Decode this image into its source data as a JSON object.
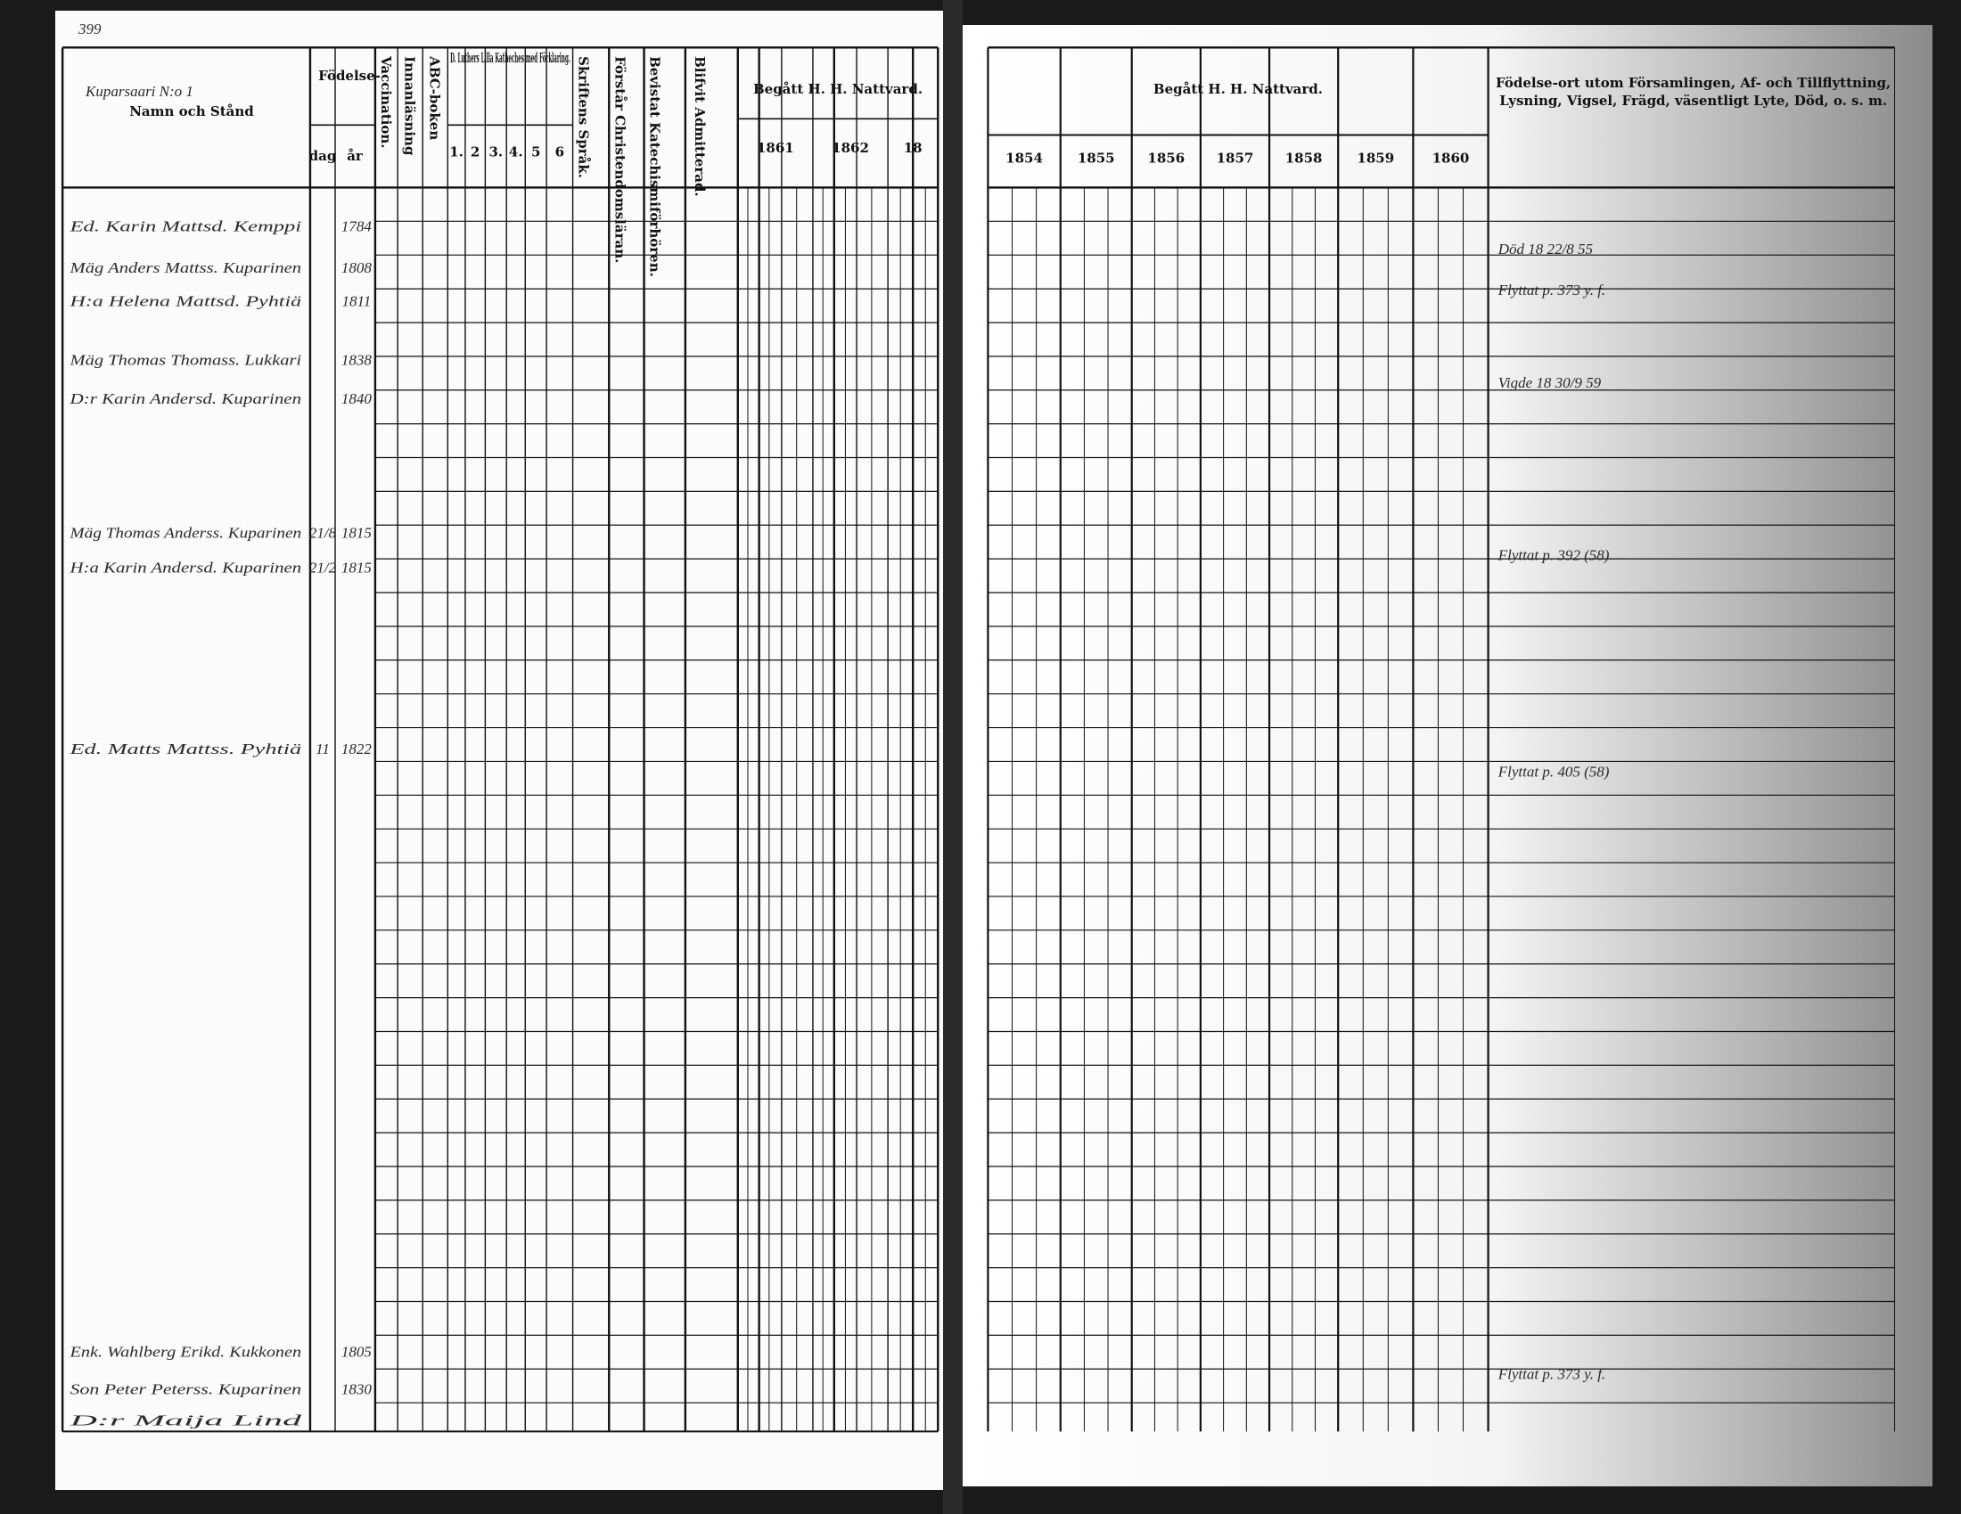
{
  "page_number": "399",
  "left_page": {
    "house": "Kuparsaari N:o 1",
    "headers": {
      "name": "Namn och Stånd",
      "birth": "Födelse-",
      "birth_day": "dag",
      "birth_year": "år",
      "vaccination": "Vaccination.",
      "reading": "Innanläsning",
      "abc": "ABC-boken",
      "catechism": "D. Luthers Lilla Katheches med Förklaring.",
      "catechism_parts": [
        "1.",
        "2",
        "3.",
        "4.",
        "5",
        "6"
      ],
      "scripture": "Skriftens Språk.",
      "doctrine": "Förstår Christendomsläran.",
      "examinations": "Bevistat Katechismiförhören.",
      "admitted": "Blifvit Admitterad.",
      "communion": "Begått H. H. Nattvard.",
      "communion_years": [
        "1861",
        "1862",
        "18"
      ]
    },
    "rows": [
      {
        "name": "Ed. Karin Mattsd. Kemppi",
        "day": "",
        "year": "1784"
      },
      {
        "name": "Mäg Anders Mattss. Kuparinen",
        "day": "",
        "year": "1808"
      },
      {
        "name": "H:a Helena Mattsd. Pyhtiä",
        "day": "",
        "year": "1811"
      },
      {
        "name": "Mäg Thomas Thomass. Lukkari",
        "day": "",
        "year": "1838"
      },
      {
        "name": "D:r Karin Andersd. Kuparinen",
        "day": "",
        "year": "1840"
      },
      {
        "name": "Mäg Thomas Anderss. Kuparinen",
        "day": "21/8",
        "year": "1815"
      },
      {
        "name": "H:a Karin Andersd. Kuparinen",
        "day": "21/2",
        "year": "1815"
      },
      {
        "name": "Ed. Matts Mattss. Pyhtiä",
        "day": "11",
        "year": "1822"
      },
      {
        "name": "Enk. Wahlberg Erikd. Kukkonen",
        "day": "",
        "year": "1805"
      },
      {
        "name": "Son Peter Peterss. Kuparinen",
        "day": "",
        "year": "1830"
      },
      {
        "name": "D:r Maija Lind",
        "day": "",
        "year": ""
      }
    ]
  },
  "right_page": {
    "communion": "Begått H. H. Nattvard.",
    "years": [
      "1854",
      "1855",
      "1856",
      "1857",
      "1858",
      "1859",
      "1860"
    ],
    "remarks_header": "Födelse-ort utom Församlingen, Af- och Tillflyttning, Lysning, Vigsel, Frägd, väsentligt Lyte, Död, o. s. m.",
    "remarks": [
      {
        "row": 0,
        "text": "Död 18 22/8 55"
      },
      {
        "row": 1,
        "text": "Flyttat p. 373 y. f."
      },
      {
        "row": 3,
        "text": "Vigde 18 30/9 59"
      },
      {
        "row": 5,
        "text": "Flyttat p. 392 (58)"
      },
      {
        "row": 7,
        "text": "Flyttat p. 405 (58)"
      },
      {
        "row": 8,
        "text": "Flyttat p. 373 y. f."
      }
    ]
  }
}
